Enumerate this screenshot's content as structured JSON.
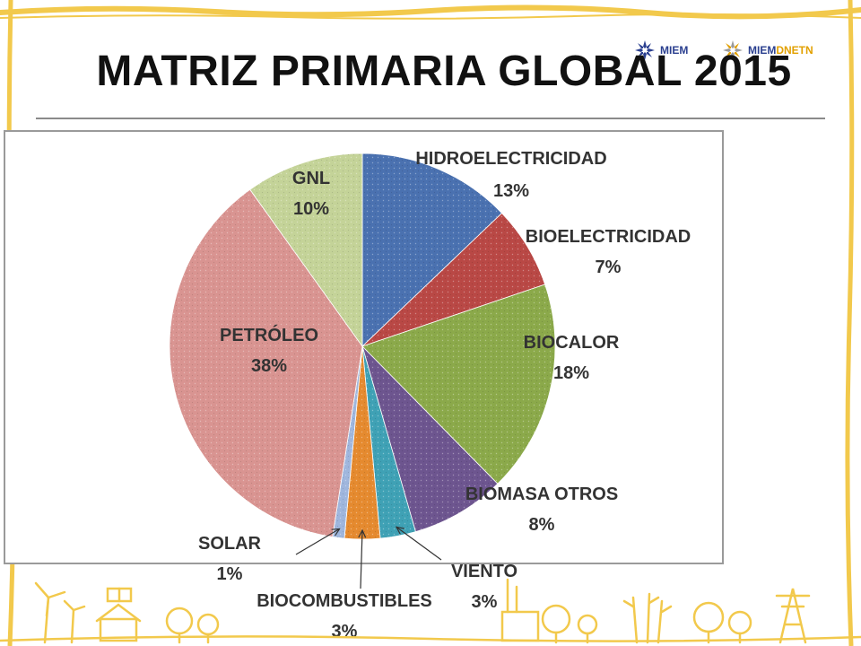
{
  "title": "MATRIZ PRIMARIA GLOBAL 2015",
  "logos": [
    {
      "name": "MIEM",
      "text": "MIEM",
      "color": "#2a3f8f"
    },
    {
      "name": "MIEM DNETN",
      "text": "MIEM",
      "text2": "DNETN",
      "color": "#2a3f8f",
      "color2": "#e2a000"
    }
  ],
  "colors": {
    "frame": "#f2c94c",
    "title": "#111111",
    "label": "#333333",
    "leader": "#333333"
  },
  "chart_data": {
    "type": "pie",
    "start_angle_deg": 0,
    "direction": "clockwise",
    "slices": [
      {
        "label": "HIDROELECTRICIDAD",
        "value": 13,
        "display": "13%",
        "color": "#4a71b0"
      },
      {
        "label": "BIOELECTRICIDAD",
        "value": 7,
        "display": "7%",
        "color": "#b94845"
      },
      {
        "label": "BIOCALOR",
        "value": 18,
        "display": "18%",
        "color": "#8ba94a"
      },
      {
        "label": "BIOMASA OTROS",
        "value": 8,
        "display": "8%",
        "color": "#6d558f"
      },
      {
        "label": "VIENTO",
        "value": 3,
        "display": "3%",
        "color": "#3fa1b5"
      },
      {
        "label": "BIOCOMBUSTIBLES",
        "value": 3,
        "display": "3%",
        "color": "#e58a2f"
      },
      {
        "label": "SOLAR",
        "value": 1,
        "display": "1%",
        "color": "#9fb6dd"
      },
      {
        "label": "PETRÓLEO",
        "value": 38,
        "display": "38%",
        "color": "#d99491"
      },
      {
        "label": "GNL",
        "value": 10,
        "display": "10%",
        "color": "#c4d398"
      }
    ]
  }
}
